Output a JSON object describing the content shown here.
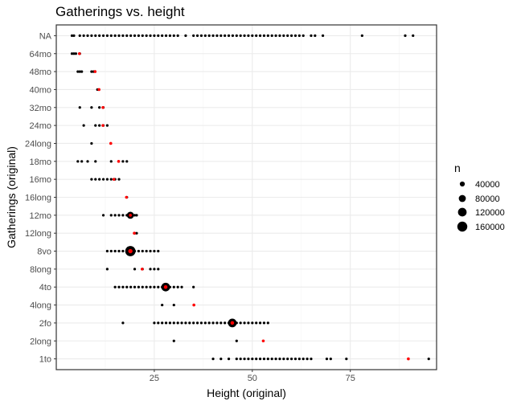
{
  "chart_data": {
    "type": "scatter",
    "title": "Gatherings vs. height",
    "xlabel": "Height (original)",
    "ylabel": "Gatherings (original)",
    "xlim": [
      0,
      97
    ],
    "x_ticks": [
      25,
      50,
      75
    ],
    "grid": true,
    "categories": [
      "1to",
      "2long",
      "2fo",
      "4long",
      "4to",
      "8long",
      "8vo",
      "12long",
      "12mo",
      "16long",
      "16mo",
      "18mo",
      "24long",
      "24mo",
      "32mo",
      "40mo",
      "48mo",
      "64mo",
      "NA"
    ],
    "legend": {
      "title": "n",
      "position": "right",
      "entries": [
        {
          "label": "40000",
          "value": 40000
        },
        {
          "label": "80000",
          "value": 80000
        },
        {
          "label": "120000",
          "value": 120000
        },
        {
          "label": "160000",
          "value": 160000
        }
      ]
    },
    "colors": {
      "points": "#000000",
      "median": "#ff0000"
    },
    "black_points": [
      {
        "y": "1to",
        "x": [
          40,
          42,
          44,
          46,
          47,
          48,
          49,
          50,
          51,
          52,
          53,
          54,
          55,
          56,
          57,
          58,
          59,
          60,
          61,
          62,
          63,
          64,
          65,
          69,
          70,
          74,
          95
        ]
      },
      {
        "y": "2long",
        "x": [
          30,
          46
        ]
      },
      {
        "y": "2fo",
        "x": [
          17,
          25,
          26,
          27,
          28,
          29,
          30,
          31,
          32,
          33,
          34,
          35,
          36,
          37,
          38,
          39,
          40,
          41,
          42,
          43,
          44,
          46,
          47,
          48,
          49,
          50,
          51,
          52,
          53,
          54
        ]
      },
      {
        "y": "4long",
        "x": [
          27,
          30
        ]
      },
      {
        "y": "4to",
        "x": [
          15,
          16,
          17,
          18,
          19,
          20,
          21,
          22,
          23,
          24,
          25,
          26,
          27,
          29,
          30,
          31,
          32,
          35
        ]
      },
      {
        "y": "8long",
        "x": [
          13,
          20,
          22,
          24,
          25,
          26
        ]
      },
      {
        "y": "8vo",
        "x": [
          13,
          14,
          15,
          16,
          17,
          18,
          20,
          21,
          22,
          23,
          24,
          25,
          26
        ]
      },
      {
        "y": "12long",
        "x": [
          20,
          20.5
        ]
      },
      {
        "y": "12mo",
        "x": [
          12,
          14,
          15,
          16,
          17,
          18,
          20,
          20.5
        ]
      },
      {
        "y": "16long",
        "x": [
          18
        ]
      },
      {
        "y": "16mo",
        "x": [
          9,
          10,
          11,
          12,
          13,
          14,
          15,
          16
        ]
      },
      {
        "y": "18mo",
        "x": [
          5.5,
          6.5,
          8,
          10,
          14,
          17,
          18
        ]
      },
      {
        "y": "24long",
        "x": [
          9
        ]
      },
      {
        "y": "24mo",
        "x": [
          7,
          10,
          11,
          12,
          13
        ]
      },
      {
        "y": "32mo",
        "x": [
          6,
          9,
          11,
          12
        ]
      },
      {
        "y": "40mo",
        "x": [
          10.5
        ]
      },
      {
        "y": "48mo",
        "x": [
          5.5,
          6,
          6.5,
          9,
          9.5
        ]
      },
      {
        "y": "64mo",
        "x": [
          4,
          4.5,
          5,
          6
        ]
      },
      {
        "y": "NA",
        "x": [
          4,
          4.5,
          6,
          7,
          8,
          9,
          10,
          11,
          12,
          13,
          14,
          15,
          16,
          17,
          18,
          19,
          20,
          21,
          22,
          23,
          24,
          25,
          26,
          27,
          28,
          29,
          30,
          31,
          33,
          35,
          36,
          37,
          38,
          39,
          40,
          41,
          42,
          43,
          44,
          45,
          46,
          47,
          48,
          49,
          50,
          51,
          52,
          53,
          54,
          55,
          56,
          57,
          58,
          59,
          60,
          61,
          62,
          63,
          65,
          66,
          68,
          78,
          89,
          91
        ]
      }
    ],
    "summary_points": [
      {
        "y": "1to",
        "x": 89.8,
        "n": 3000
      },
      {
        "y": "2long",
        "x": 52.8,
        "n": 3000
      },
      {
        "y": "2fo",
        "x": 44.9,
        "n": 120000
      },
      {
        "y": "4long",
        "x": 35.1,
        "n": 3000
      },
      {
        "y": "4to",
        "x": 27.9,
        "n": 120000
      },
      {
        "y": "8long",
        "x": 21.9,
        "n": 8000
      },
      {
        "y": "8vo",
        "x": 18.9,
        "n": 170000
      },
      {
        "y": "12long",
        "x": 19.9,
        "n": 3000
      },
      {
        "y": "12mo",
        "x": 18.9,
        "n": 80000
      },
      {
        "y": "16long",
        "x": 17.9,
        "n": 1000
      },
      {
        "y": "16mo",
        "x": 14.7,
        "n": 8000
      },
      {
        "y": "18mo",
        "x": 15.9,
        "n": 8000
      },
      {
        "y": "24long",
        "x": 13.9,
        "n": 3000
      },
      {
        "y": "24mo",
        "x": 11.9,
        "n": 12000
      },
      {
        "y": "32mo",
        "x": 11.9,
        "n": 6000
      },
      {
        "y": "40mo",
        "x": 10.9,
        "n": 2000
      },
      {
        "y": "48mo",
        "x": 9.9,
        "n": 6000
      },
      {
        "y": "64mo",
        "x": 5.9,
        "n": 6000
      }
    ]
  }
}
